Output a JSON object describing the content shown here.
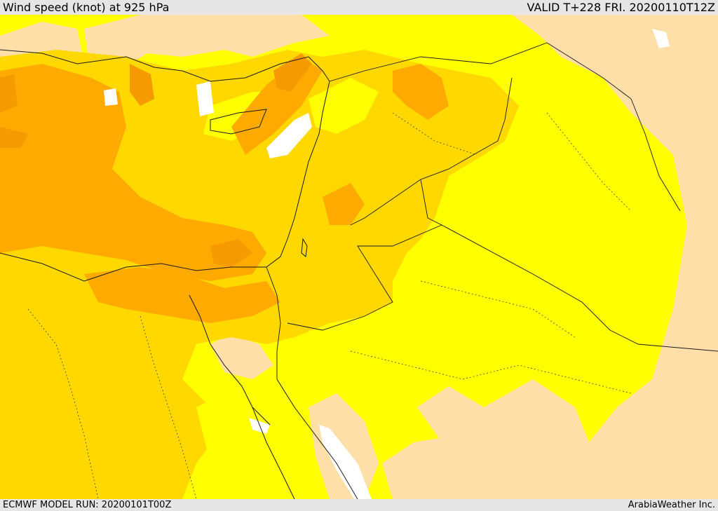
{
  "header": {
    "title": "Wind speed (knot) at 925 hPa",
    "valid": "VALID T+228 FRI. 20200110T12Z"
  },
  "footer": {
    "model_run": "ECMWF MODEL RUN: 20200101T00Z",
    "credit": "ArabiaWeather Inc."
  },
  "colors": {
    "bg_frame": "#e6e6e6",
    "band_lowest": "#ffffff",
    "band_low": "#ffdfa8",
    "band_mid": "#ffff00",
    "band_mid_high": "#ffd800",
    "band_high": "#ffaa00",
    "band_highest": "#f59a00",
    "border_line": "#1a1a1a"
  }
}
